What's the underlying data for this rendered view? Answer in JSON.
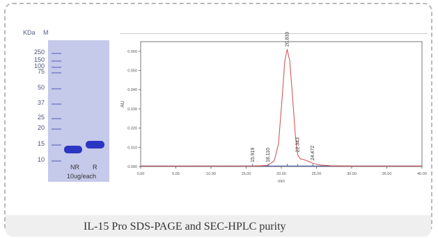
{
  "gel": {
    "unit_label": "KDa",
    "marker_label": "M",
    "markers": [
      "250",
      "150",
      "100",
      "75",
      "50",
      "37",
      "25",
      "20",
      "15",
      "10"
    ],
    "lanes": [
      "NR",
      "R"
    ],
    "load_label": "10ug/each"
  },
  "chart_data": {
    "type": "line",
    "xlabel": "min",
    "ylabel": "AU",
    "xlim": [
      0,
      40
    ],
    "ylim": [
      0,
      0.065
    ],
    "x_ticks": [
      "0.00",
      "5.00",
      "10.00",
      "15.00",
      "20.00",
      "25.00",
      "30.00",
      "35.00",
      "40.00"
    ],
    "y_ticks": [
      "0.000",
      "0.010",
      "0.020",
      "0.030",
      "0.040",
      "0.050",
      "0.060"
    ],
    "series": [
      {
        "x": [
          0,
          15.9,
          17.0,
          18.1,
          19.0,
          19.6,
          20.1,
          20.5,
          20.83,
          21.2,
          21.6,
          22.0,
          22.34,
          22.7,
          23.3,
          24.0,
          24.47,
          25.5,
          27,
          30,
          40
        ],
        "y": [
          0.0002,
          0.0003,
          0.0004,
          0.0006,
          0.003,
          0.012,
          0.035,
          0.055,
          0.061,
          0.055,
          0.036,
          0.016,
          0.006,
          0.004,
          0.0035,
          0.0025,
          0.0017,
          0.0008,
          0.0004,
          0.0002,
          0.0002
        ]
      }
    ],
    "peak_labels": [
      {
        "x": 15.919,
        "label": "15.919"
      },
      {
        "x": 18.11,
        "label": "18.110"
      },
      {
        "x": 20.833,
        "label": "20.833"
      },
      {
        "x": 22.343,
        "label": "22.343"
      },
      {
        "x": 24.472,
        "label": "24.472"
      }
    ]
  },
  "caption": "IL-15 Pro SDS-PAGE and SEC-HPLC purity"
}
